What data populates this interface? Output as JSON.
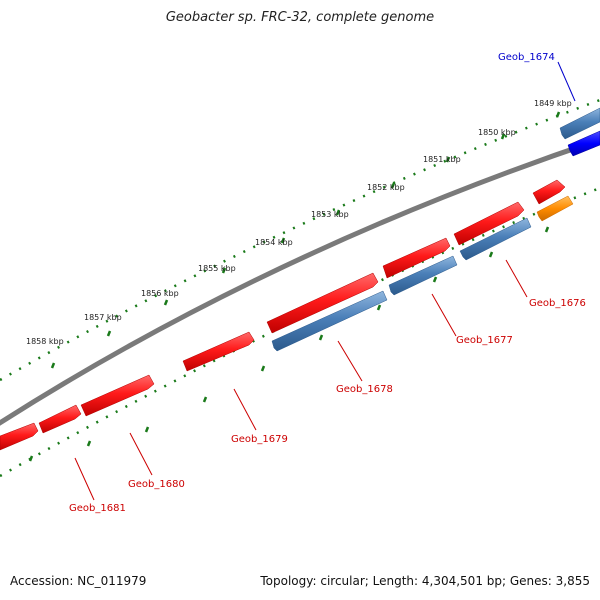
{
  "title": "Geobacter sp. FRC-32, complete genome",
  "footer": {
    "accession": "Accession: NC_011979",
    "summary": "Topology: circular; Length: 4,304,501 bp; Genes: 3,855"
  },
  "ruler": {
    "ticks": [
      {
        "label": "1849 kbp"
      },
      {
        "label": "1850 kbp"
      },
      {
        "label": "1851 kbp"
      },
      {
        "label": "1852 kbp"
      },
      {
        "label": "1853 kbp"
      },
      {
        "label": "1854 kbp"
      },
      {
        "label": "1855 kbp"
      },
      {
        "label": "1856 kbp"
      },
      {
        "label": "1857 kbp"
      },
      {
        "label": "1858 kbp"
      }
    ]
  },
  "genes": [
    {
      "name": "Geob_1674",
      "color": "#0000cc"
    },
    {
      "name": "Geob_1676",
      "color": "#cc0000"
    },
    {
      "name": "Geob_1677",
      "color": "#cc0000"
    },
    {
      "name": "Geob_1678",
      "color": "#cc0000"
    },
    {
      "name": "Geob_1679",
      "color": "#cc0000"
    },
    {
      "name": "Geob_1680",
      "color": "#cc0000"
    },
    {
      "name": "Geob_1681",
      "color": "#cc0000"
    }
  ],
  "colors": {
    "backbone": "#808080",
    "tick": "#1a7a1a",
    "forward_feature": "#ff1a1a",
    "reverse_feature": "#4a7fb8",
    "blue_feature": "#0000ff",
    "orange_feature": "#ff8c00"
  }
}
